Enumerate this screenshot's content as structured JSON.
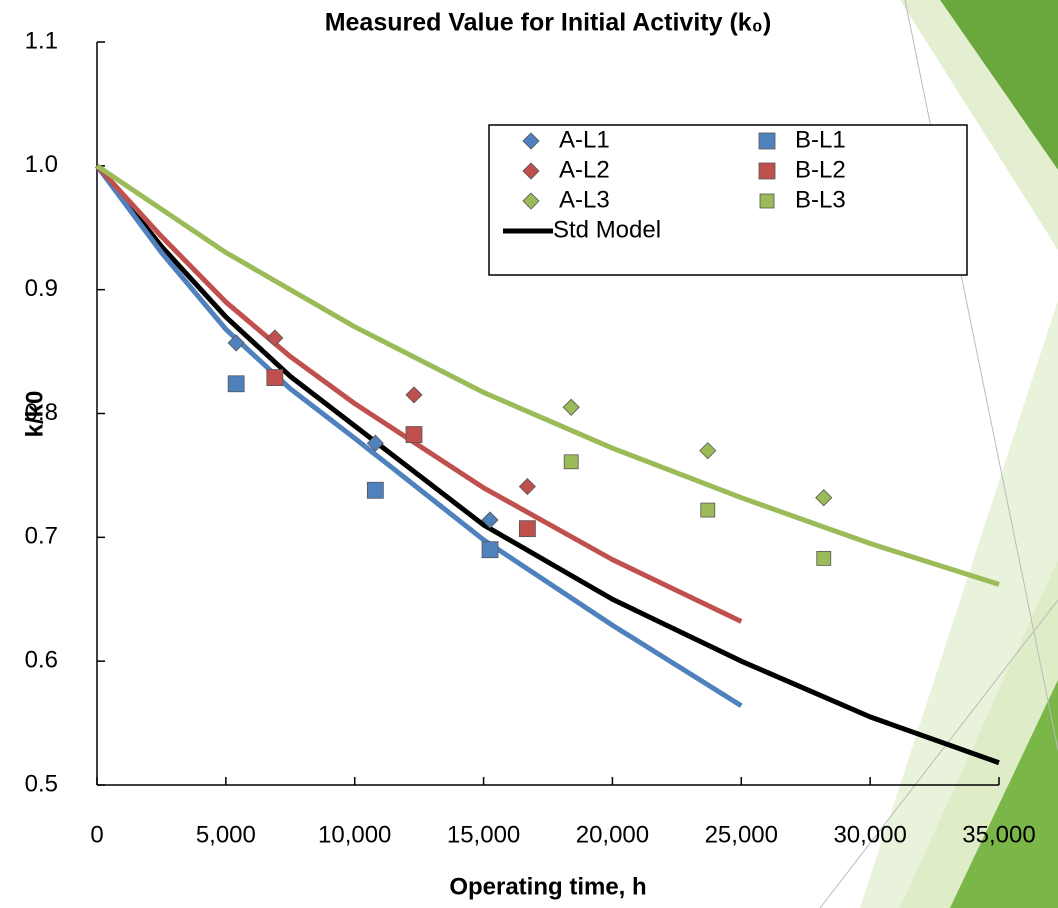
{
  "chart_data": {
    "type": "scatter",
    "title": "Measured Value for Initial Activity (k₀)",
    "x_label": "Operating time, h",
    "y_label": "k/k0",
    "xlim": [
      0,
      35000
    ],
    "xticks": [
      0,
      {
        "value": 5000,
        "label": "5,000"
      },
      {
        "value": 10000,
        "label": "10,000"
      },
      {
        "value": 15000,
        "label": "15,000"
      },
      {
        "value": 20000,
        "label": "20,000"
      },
      {
        "value": 25000,
        "label": "25,000"
      },
      {
        "value": 30000,
        "label": "30,000"
      },
      {
        "value": 35000,
        "label": "35,000"
      }
    ],
    "ylim": [
      0.5,
      1.1
    ],
    "yticks": [
      0.5,
      0.6,
      0.7,
      0.8,
      0.9,
      {
        "value": 1,
        "label": "1.0"
      },
      1.1
    ],
    "grid": false,
    "legend": "upper right",
    "series": [
      {
        "name": "A-L1",
        "color": "#4f81bd",
        "marker": "diamond",
        "x": [
          5400,
          10800,
          15250
        ],
        "values": [
          0.857,
          0.776,
          0.714
        ]
      },
      {
        "name": "B-L1",
        "color": "#4f81bd",
        "marker": "square",
        "x": [
          5400,
          10800,
          15250
        ],
        "values": [
          0.824,
          0.738,
          0.69
        ]
      },
      {
        "name": "A-L2",
        "color": "#c0504d",
        "marker": "diamond",
        "x": [
          6900,
          12300,
          16700
        ],
        "values": [
          0.861,
          0.815,
          0.741
        ]
      },
      {
        "name": "B-L2",
        "color": "#c0504d",
        "marker": "square",
        "x": [
          6900,
          12300,
          16700
        ],
        "values": [
          0.829,
          0.783,
          0.707
        ]
      },
      {
        "name": "A-L3",
        "color": "#9bbb59",
        "marker": "diamond",
        "x": [
          18400,
          23700,
          28200
        ],
        "values": [
          0.805,
          0.77,
          0.732
        ]
      },
      {
        "name": "B-L3",
        "color": "#9bbb59",
        "marker": "smallsquare",
        "x": [
          18400,
          23700,
          28200
        ],
        "values": [
          0.761,
          0.722,
          0.683
        ]
      },
      {
        "name": "Std Model",
        "color": "#000000",
        "marker": "line",
        "x": [
          0,
          2500,
          5000,
          7500,
          10000,
          15000,
          20000,
          25000,
          30000,
          35000
        ],
        "values": [
          1.0,
          0.935,
          0.878,
          0.83,
          0.79,
          0.71,
          0.65,
          0.6,
          0.555,
          0.518
        ]
      },
      {
        "color": "#4f81bd",
        "marker": "line",
        "x": [
          0,
          2500,
          5000,
          7500,
          10000,
          15000,
          20000,
          25000
        ],
        "values": [
          1.0,
          0.93,
          0.868,
          0.82,
          0.78,
          0.698,
          0.629,
          0.564
        ]
      },
      {
        "color": "#c0504d",
        "marker": "line",
        "x": [
          0,
          2500,
          5000,
          7500,
          10000,
          15000,
          20000,
          25000
        ],
        "values": [
          1.0,
          0.943,
          0.89,
          0.846,
          0.808,
          0.74,
          0.682,
          0.632
        ]
      },
      {
        "color": "#9bbb59",
        "marker": "line",
        "x": [
          0,
          5000,
          10000,
          15000,
          20000,
          25000,
          30000,
          35000
        ],
        "values": [
          1.0,
          0.93,
          0.87,
          0.817,
          0.772,
          0.732,
          0.695,
          0.662
        ]
      }
    ]
  }
}
